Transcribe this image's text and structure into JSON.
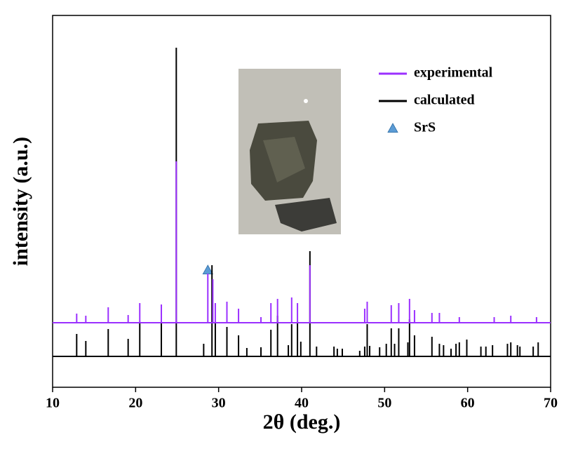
{
  "chart_data": {
    "type": "line",
    "xlabel": "2θ (deg.)",
    "ylabel": "intensity (a.u.)",
    "xlim": [
      10,
      70
    ],
    "xticks": [
      10,
      20,
      30,
      40,
      50,
      60,
      70
    ],
    "ylim": [
      0,
      530
    ],
    "series": [
      {
        "name": "experimental",
        "color": "#9b30ff",
        "baseline": 92,
        "x": [
          12.9,
          14.0,
          16.7,
          19.1,
          20.5,
          23.1,
          24.9,
          28.7,
          29.3,
          29.6,
          31.0,
          32.4,
          35.1,
          36.3,
          37.1,
          38.8,
          39.5,
          41.0,
          47.6,
          47.9,
          50.8,
          51.7,
          53.0,
          53.6,
          55.7,
          56.6,
          59.0,
          63.2,
          65.2,
          68.3
        ],
        "values": [
          105,
          102,
          114,
          103,
          120,
          118,
          322,
          162,
          154,
          120,
          122,
          112,
          100,
          120,
          126,
          128,
          120,
          174,
          112,
          122,
          117,
          120,
          126,
          110,
          106,
          106,
          100,
          100,
          102,
          100
        ]
      },
      {
        "name": "calculated",
        "color": "#000000",
        "baseline": 44,
        "x": [
          12.9,
          14.0,
          16.7,
          19.1,
          20.5,
          23.1,
          24.9,
          28.2,
          29.2,
          29.6,
          31.0,
          32.4,
          33.4,
          35.1,
          36.3,
          37.1,
          38.4,
          38.8,
          39.5,
          39.9,
          41.0,
          41.8,
          43.9,
          44.3,
          44.9,
          47.0,
          47.6,
          47.9,
          48.2,
          49.4,
          50.2,
          50.8,
          51.2,
          51.7,
          52.8,
          53.0,
          53.6,
          55.7,
          56.6,
          57.1,
          58.0,
          58.6,
          59.0,
          59.9,
          61.6,
          62.2,
          63.0,
          64.8,
          65.2,
          66.0,
          66.3,
          67.9,
          68.5
        ],
        "values": [
          76,
          66,
          83,
          69,
          92,
          92,
          484,
          62,
          174,
          92,
          86,
          74,
          56,
          57,
          82,
          102,
          60,
          90,
          92,
          65,
          194,
          58,
          58,
          55,
          55,
          52,
          58,
          90,
          59,
          57,
          62,
          84,
          62,
          84,
          64,
          97,
          74,
          72,
          62,
          60,
          55,
          62,
          64,
          68,
          58,
          58,
          60,
          62,
          64,
          60,
          58,
          58,
          64
        ]
      },
      {
        "name": "SrS",
        "color": "#5b9bd5",
        "marker": "triangle",
        "x": [
          28.7
        ],
        "values": [
          167
        ]
      }
    ]
  }
}
